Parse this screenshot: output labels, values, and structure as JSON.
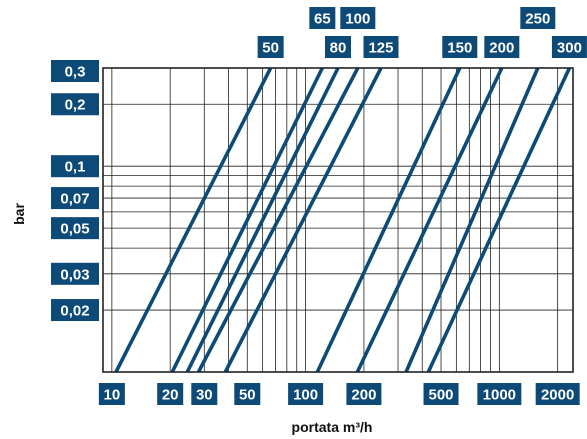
{
  "chart_data": {
    "type": "line",
    "title": "",
    "xlabel": "portata m³/h",
    "ylabel": "bar",
    "xscale": "log",
    "yscale": "log",
    "xlim": [
      9,
      2400
    ],
    "ylim": [
      0.01,
      0.3
    ],
    "grid": true,
    "legend": "none",
    "x_tick_labels": [
      "10",
      "20",
      "30",
      "50",
      "100",
      "200",
      "500",
      "1000",
      "2000"
    ],
    "x_ticks": [
      10,
      20,
      30,
      50,
      100,
      200,
      500,
      1000,
      2000
    ],
    "y_tick_labels": [
      "0,02",
      "0,03",
      "0,05",
      "0,07",
      "0,1",
      "0,2",
      "0,3"
    ],
    "y_ticks": [
      0.02,
      0.03,
      0.05,
      0.07,
      0.1,
      0.2,
      0.3
    ],
    "series": [
      {
        "name": "50",
        "x": [
          10.5,
          66
        ],
        "y": [
          0.01,
          0.3
        ]
      },
      {
        "name": "65",
        "x": [
          20.5,
          122
        ],
        "y": [
          0.01,
          0.3
        ]
      },
      {
        "name": "80",
        "x": [
          24.5,
          147
        ],
        "y": [
          0.01,
          0.3
        ]
      },
      {
        "name": "100",
        "x": [
          28,
          186
        ],
        "y": [
          0.01,
          0.3
        ]
      },
      {
        "name": "125",
        "x": [
          38.5,
          245
        ],
        "y": [
          0.01,
          0.3
        ]
      },
      {
        "name": "150",
        "x": [
          115,
          625
        ],
        "y": [
          0.01,
          0.3
        ]
      },
      {
        "name": "200",
        "x": [
          185,
          1030
        ],
        "y": [
          0.01,
          0.3
        ]
      },
      {
        "name": "250",
        "x": [
          330,
          1580
        ],
        "y": [
          0.01,
          0.3
        ]
      },
      {
        "name": "300",
        "x": [
          430,
          2300
        ],
        "y": [
          0.01,
          0.3
        ]
      }
    ]
  },
  "colors": {
    "line": "#0d4a78",
    "label_bg": "#0d4a78",
    "grid": "#222222"
  }
}
